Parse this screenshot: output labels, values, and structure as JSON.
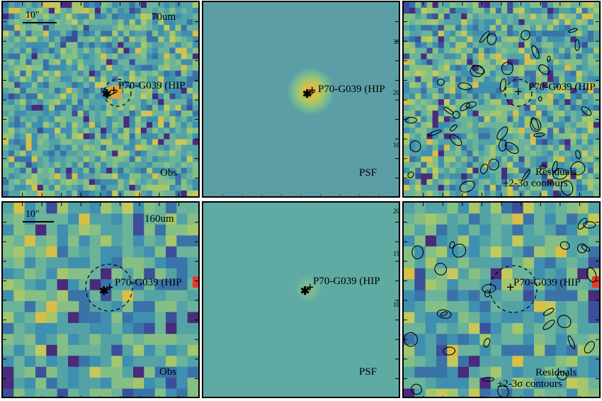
{
  "panels": [
    {
      "id": "r1c1",
      "kind": "obs",
      "band": "70um",
      "scale": "10\"",
      "corner": "Obs",
      "source": "P70-G039 (HIP"
    },
    {
      "id": "r1c2",
      "kind": "psf",
      "corner": "PSF",
      "source": "P70-G039 (HIP"
    },
    {
      "id": "r1c3",
      "kind": "res",
      "corner1": "Residuals",
      "corner2": "±2-3σ contours",
      "source": "P70-G039 (HIP"
    },
    {
      "id": "r2c1",
      "kind": "obs",
      "band": "160um",
      "scale": "10\"",
      "corner": "Obs",
      "source": "P70-G039 (HIP"
    },
    {
      "id": "r2c2",
      "kind": "psf",
      "corner": "PSF",
      "source": "P70-G039 (HIP"
    },
    {
      "id": "r2c3",
      "kind": "res",
      "corner1": "Residuals",
      "corner2": "±2-3σ contours",
      "source": "P70-G039 (HIP"
    }
  ],
  "axis_ticks": {
    "top_psf": [
      "30",
      "20",
      "10"
    ],
    "bottom_psf": [
      "20",
      "15",
      "10"
    ]
  },
  "colors": {
    "bg_psf_top": "#5b9ea6",
    "bg_psf_bottom": "#5faaa3",
    "accent_high": "#e8372a"
  }
}
